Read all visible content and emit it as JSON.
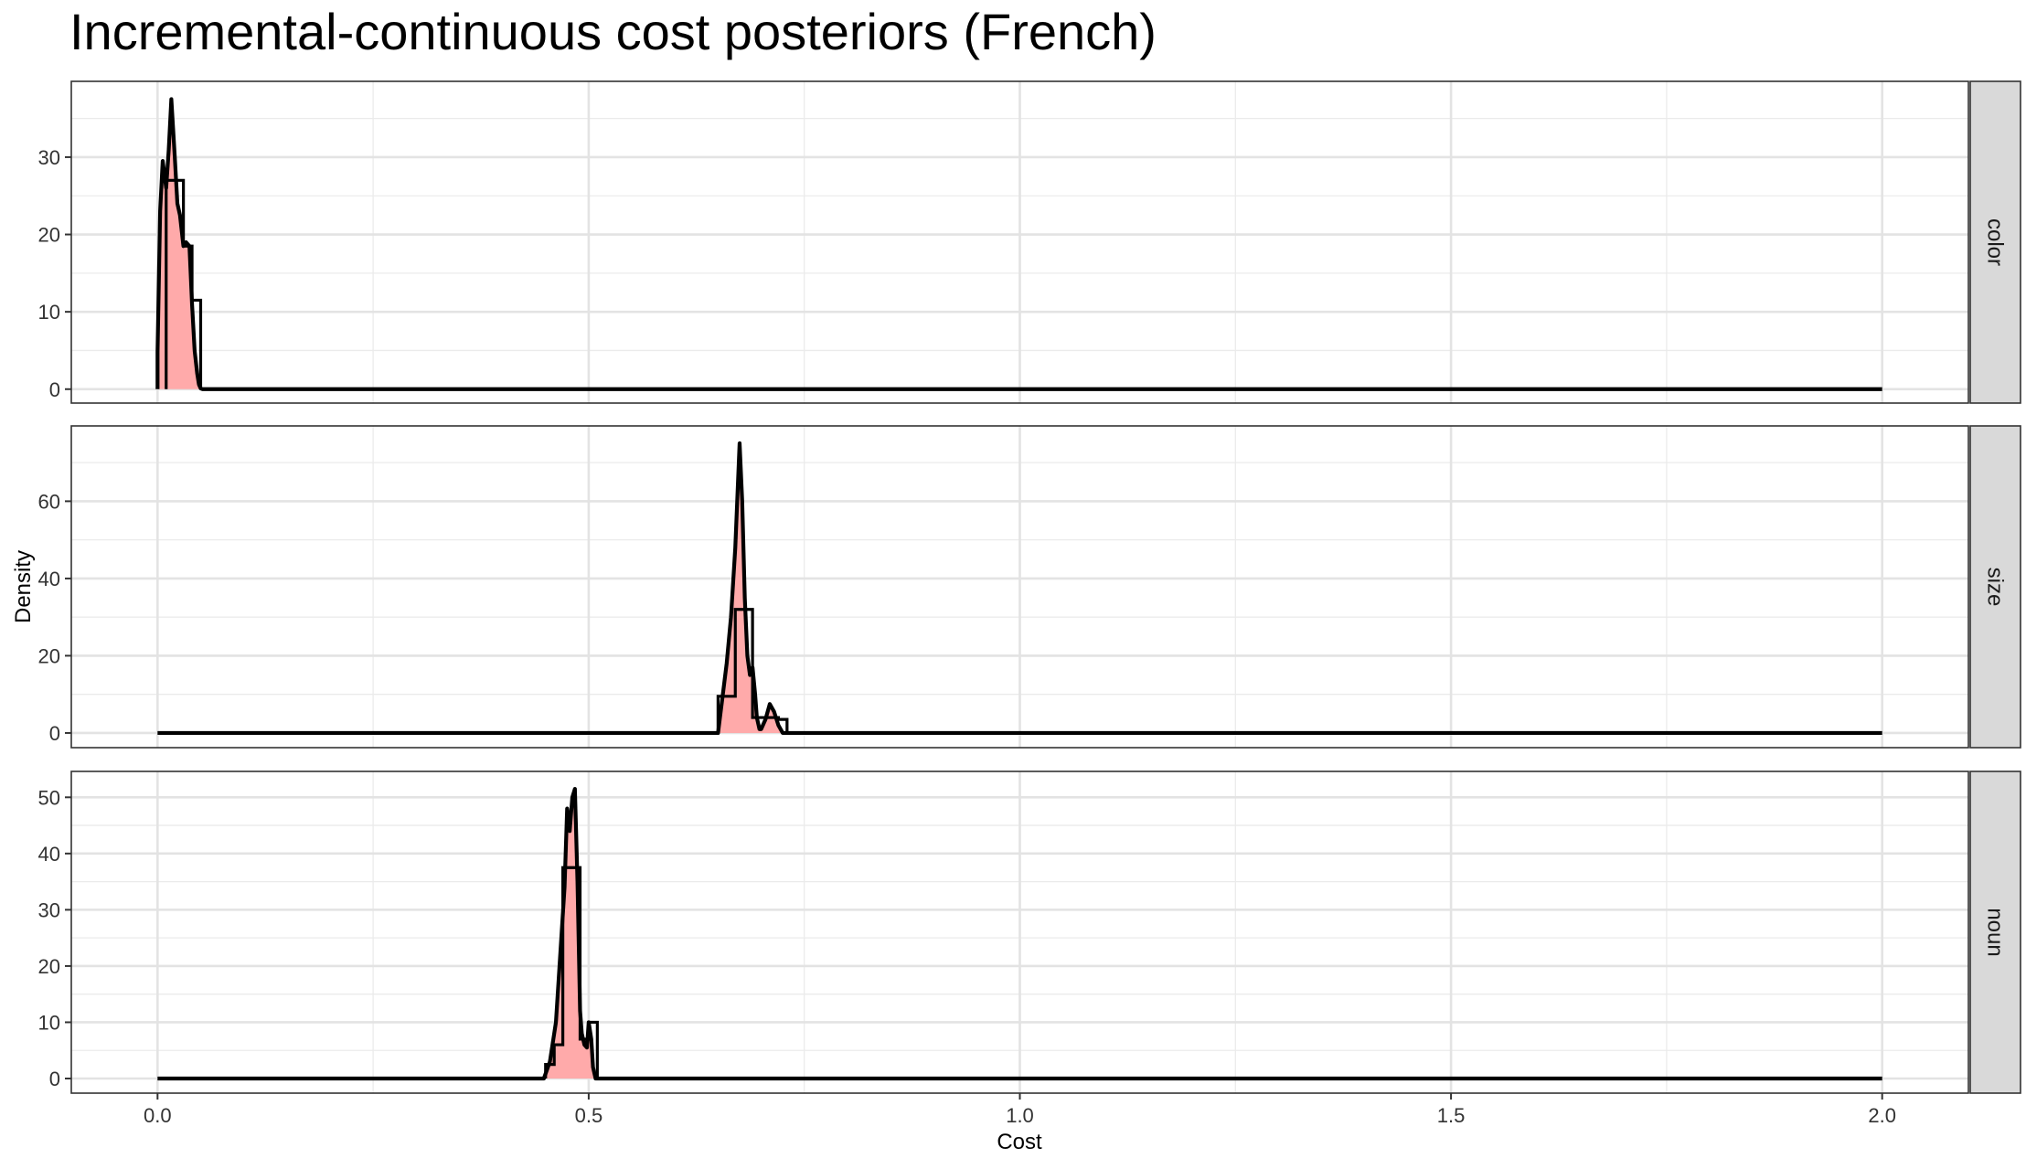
{
  "chart_data": {
    "type": "area",
    "title": "Incremental-continuous cost posteriors (French)",
    "xlabel": "Cost",
    "ylabel": "Density",
    "xlim": [
      -0.1,
      2.1
    ],
    "x_ticks": [
      0.0,
      0.5,
      1.0,
      1.5,
      2.0
    ],
    "x_tick_labels": [
      "0.0",
      "0.5",
      "1.0",
      "1.5",
      "2.0"
    ],
    "fill_color": "#ffaaaa",
    "line_color": "#000000",
    "grid": true,
    "facets": [
      {
        "strip_label": "color",
        "ylim": [
          -1.8,
          39.8
        ],
        "y_ticks": [
          0,
          10,
          20,
          30
        ],
        "y_tick_labels": [
          "0",
          "10",
          "20",
          "30"
        ],
        "density": {
          "x": [
            0.0,
            0.003,
            0.006,
            0.01,
            0.013,
            0.016,
            0.02,
            0.023,
            0.026,
            0.03,
            0.033,
            0.037,
            0.04,
            0.043,
            0.046,
            0.048,
            0.05,
            0.052
          ],
          "y": [
            4.8,
            23,
            29.5,
            26,
            31,
            37.5,
            30,
            24,
            22.5,
            18.5,
            19,
            18.5,
            11,
            5,
            2,
            0.6,
            0.1,
            0
          ]
        },
        "histogram": {
          "edges": [
            0.01,
            0.03,
            0.04,
            0.05
          ],
          "heights": [
            27,
            18.5,
            11.5
          ]
        }
      },
      {
        "strip_label": "size",
        "ylim": [
          -3.8,
          79.5
        ],
        "y_ticks": [
          0,
          20,
          40,
          60
        ],
        "y_tick_labels": [
          "0",
          "20",
          "40",
          "60"
        ],
        "density": {
          "x": [
            0.65,
            0.66,
            0.665,
            0.67,
            0.675,
            0.678,
            0.681,
            0.684,
            0.687,
            0.69,
            0.693,
            0.695,
            0.698,
            0.7,
            0.705,
            0.71,
            0.715,
            0.72,
            0.725
          ],
          "y": [
            0,
            18,
            30,
            48,
            75,
            60,
            35,
            20,
            15,
            17,
            10,
            4,
            1,
            1,
            3.5,
            7.5,
            5.5,
            2,
            0
          ]
        },
        "histogram": {
          "edges": [
            0.65,
            0.67,
            0.68,
            0.69,
            0.7,
            0.72,
            0.73
          ],
          "heights": [
            9.5,
            32,
            32,
            4,
            4,
            3.5
          ]
        }
      },
      {
        "strip_label": "noun",
        "ylim": [
          -2.6,
          54.6
        ],
        "y_ticks": [
          0,
          10,
          20,
          30,
          40,
          50
        ],
        "y_tick_labels": [
          "0",
          "10",
          "20",
          "30",
          "40",
          "50"
        ],
        "density": {
          "x": [
            0.448,
            0.455,
            0.462,
            0.467,
            0.472,
            0.475,
            0.478,
            0.481,
            0.484,
            0.487,
            0.49,
            0.492,
            0.495,
            0.498,
            0.5,
            0.503,
            0.505,
            0.508
          ],
          "y": [
            0,
            3,
            10,
            22,
            34,
            48,
            44,
            50,
            51.5,
            35,
            12,
            8,
            6,
            5.5,
            10,
            7,
            2,
            0
          ]
        },
        "histogram": {
          "edges": [
            0.45,
            0.46,
            0.47,
            0.49,
            0.5,
            0.51
          ],
          "heights": [
            2.5,
            6,
            37.5,
            7,
            10
          ]
        }
      }
    ]
  }
}
